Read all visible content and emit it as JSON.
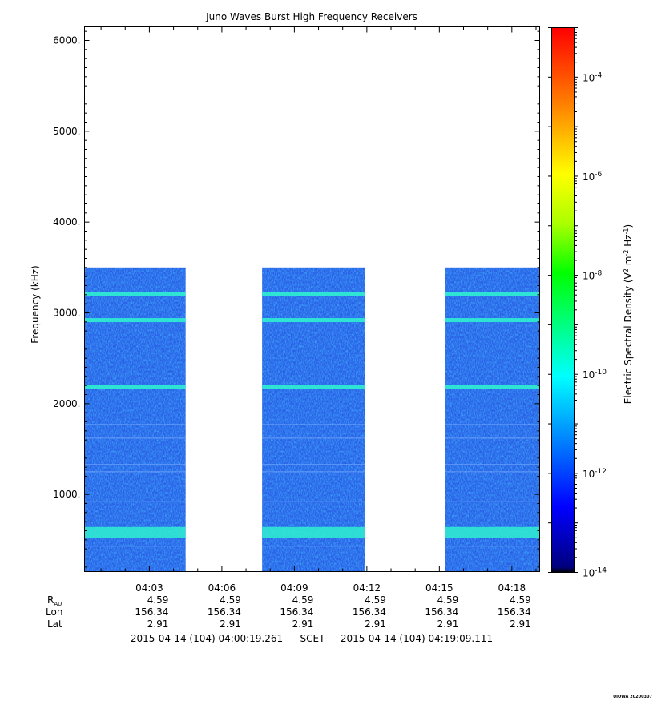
{
  "chart_data": {
    "type": "heatmap",
    "title": "Juno Waves Burst High Frequency Receivers",
    "ylabel": "Frequency (kHz)",
    "ylim": [
      150,
      6150
    ],
    "y_ticks": [
      "1000.",
      "2000.",
      "3000.",
      "4000.",
      "5000.",
      "6000."
    ],
    "y_tick_values": [
      1000,
      2000,
      3000,
      4000,
      5000,
      6000
    ],
    "x_start": "04:00:19",
    "x_end": "04:19:09",
    "x_ticks": [
      "04:03",
      "04:06",
      "04:09",
      "04:12",
      "04:15",
      "04:18"
    ],
    "data_max_frequency_khz": 3500,
    "data_segments": [
      {
        "start": "04:00:19",
        "end": "04:04:30"
      },
      {
        "start": "04:07:40",
        "end": "04:11:55"
      },
      {
        "start": "04:15:15",
        "end": "04:19:09"
      }
    ],
    "emission_bands_khz": [
      580,
      2180,
      2920,
      3210
    ],
    "ephemeris": {
      "r_label": "R",
      "r_sub": "AU",
      "lon_label": "Lon",
      "lat_label": "Lat",
      "r_values": [
        "4.59",
        "4.59",
        "4.59",
        "4.59",
        "4.59",
        "4.59"
      ],
      "lon_values": [
        "156.34",
        "156.34",
        "156.34",
        "156.34",
        "156.34",
        "156.34"
      ],
      "lat_values": [
        "2.91",
        "2.91",
        "2.91",
        "2.91",
        "2.91",
        "2.91"
      ]
    },
    "colorbar": {
      "label_base": "Electric Spectral Density (V",
      "label_sup1": "2",
      "label_mid": " m",
      "label_sup2": "-2",
      "label_mid2": " Hz",
      "label_sup3": "-1",
      "label_end": ")",
      "scale": "log",
      "range_exp": [
        -14,
        -3
      ],
      "tick_exponents": [
        "-14",
        "-12",
        "-10",
        "-8",
        "-6",
        "-4"
      ],
      "tick_base": "10"
    },
    "time_range": {
      "start": "2015-04-14 (104) 04:00:19.261",
      "mid": "SCET",
      "end": "2015-04-14 (104) 04:19:09.111"
    },
    "credit": "UIOWA 20200307"
  },
  "colors": {
    "background_level": "#2a5fe6",
    "band_color": "#2ff0d0"
  }
}
